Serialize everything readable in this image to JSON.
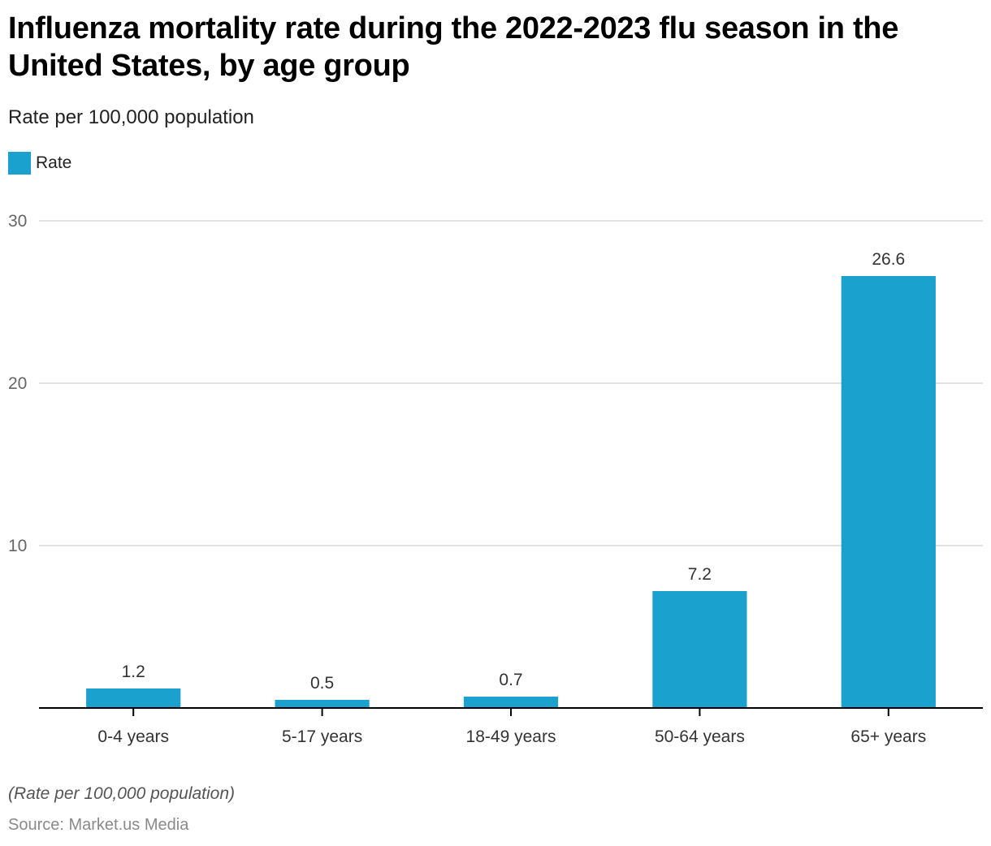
{
  "chart_data": {
    "type": "bar",
    "title": "Influenza mortality rate during the 2022-2023 flu season in the United States, by age group",
    "subtitle": "Rate per 100,000 population",
    "categories": [
      "0-4 years",
      "5-17 years",
      "18-49 years",
      "50-64 years",
      "65+ years"
    ],
    "series": [
      {
        "name": "Rate",
        "values": [
          1.2,
          0.5,
          0.7,
          7.2,
          26.6
        ],
        "color": "#1aa1cd"
      }
    ],
    "value_labels": [
      "1.2",
      "0.5",
      "0.7",
      "7.2",
      "26.6"
    ],
    "xlabel": "",
    "ylabel": "",
    "ylim": [
      0,
      30
    ],
    "yticks": [
      10,
      20,
      30
    ],
    "ytick_labels": [
      "10",
      "20",
      "30"
    ],
    "grid": true,
    "legend": {
      "position": "top-left",
      "entries": [
        "Rate"
      ]
    },
    "note": "(Rate per 100,000 population)",
    "source": "Source: Market.us Media"
  },
  "colors": {
    "bar": "#1aa1cd",
    "grid": "#d9d9d9",
    "axis": "#000000",
    "tick_text": "#666666",
    "label_text": "#333333"
  }
}
